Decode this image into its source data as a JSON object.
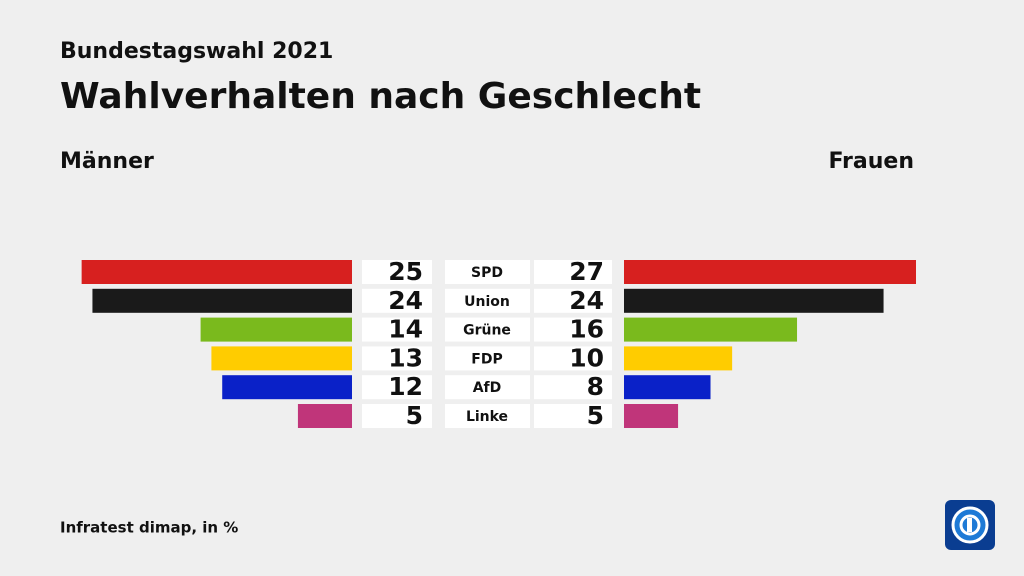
{
  "chart_data": {
    "type": "butterfly",
    "subtitle": "Bundestagswahl 2021",
    "title": "Wahlverhalten nach Geschlecht",
    "source": "Infratest dimap, in %",
    "categories": [
      "SPD",
      "Union",
      "Grüne",
      "FDP",
      "AfD",
      "Linke"
    ],
    "colors": [
      "#d7201f",
      "#1a1a1a",
      "#7aba1d",
      "#ffcc00",
      "#0a21c8",
      "#c0357a"
    ],
    "series": [
      {
        "name": "Männer",
        "values": [
          25,
          24,
          14,
          13,
          12,
          5
        ]
      },
      {
        "name": "Frauen",
        "values": [
          27,
          24,
          16,
          10,
          8,
          5
        ]
      }
    ]
  }
}
